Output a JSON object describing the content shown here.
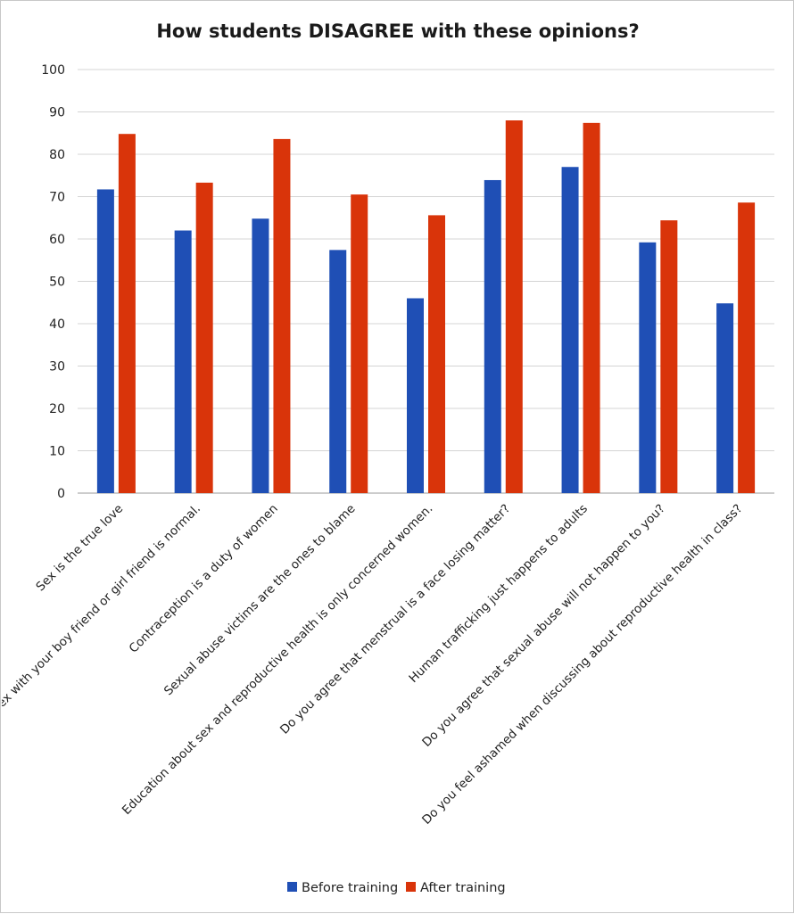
{
  "chart_data": {
    "type": "bar",
    "title": "How students DISAGREE with these opinions?",
    "xlabel": "",
    "ylabel": "",
    "ylim": [
      0,
      100
    ],
    "yticks": [
      0,
      10,
      20,
      30,
      40,
      50,
      60,
      70,
      80,
      90,
      100
    ],
    "grid": true,
    "legend_position": "bottom",
    "categories": [
      "Sex is the true love",
      "Having sex with your boy friend or girl friend is normal.",
      "Contraception is a duty of women",
      "Sexual abuse victims are the ones to blame",
      "Education about sex and reproductive health is only concerned women.",
      "Do you agree that menstrual is a face losing matter?",
      "Human trafficking just happens to adults",
      "Do you agree that sexual abuse will not happen to you?",
      "Do you feel ashamed when discussing about reproductive health in class?"
    ],
    "series": [
      {
        "name": "Before training",
        "color": "#1f4fb5",
        "values": [
          71.7,
          62.0,
          64.8,
          57.4,
          46.0,
          73.9,
          77.0,
          59.2,
          44.8
        ]
      },
      {
        "name": "After training",
        "color": "#d9340a",
        "values": [
          84.8,
          73.3,
          83.6,
          70.5,
          65.6,
          88.0,
          87.4,
          64.4,
          68.6
        ]
      }
    ]
  }
}
